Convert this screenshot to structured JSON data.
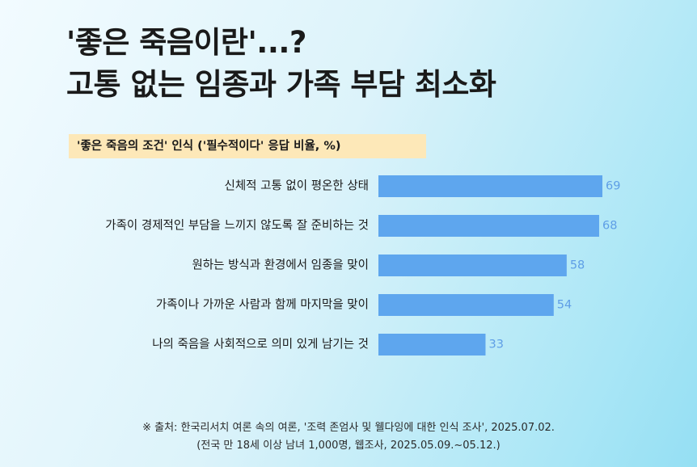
{
  "title_line1": "'좋은 죽음이란'...?",
  "title_line2": "고통 없는 임종과 가족 부담 최소화",
  "chart_data": {
    "type": "bar",
    "orientation": "horizontal",
    "title": "'좋은 죽음의 조건' 인식 ('필수적이다' 응답 비율, %)",
    "categories": [
      "신체적 고통 없이 평온한 상태",
      "가족이 경제적인 부담을 느끼지 않도록 잘 준비하는 것",
      "원하는 방식과 환경에서 임종을 맞이",
      "가족이나 가까운 사람과 함께 마지막을 맞이",
      "나의 죽음을 사회적으로 의미 있게 남기는 것"
    ],
    "values": [
      69,
      68,
      58,
      54,
      33
    ],
    "bar_color": "#5ea6ee",
    "label_color": "#5e9ee6",
    "legend": false,
    "grid": false
  },
  "footnote_line1": "※ 출처: 한국리서치 여론 속의 여론, '조력 존엄사 및 웰다잉에 대한 인식 조사', 2025.07.02.",
  "footnote_line2": "(전국 만 18세 이상 남녀 1,000명, 웹조사, 2025.05.09.~05.12.)"
}
